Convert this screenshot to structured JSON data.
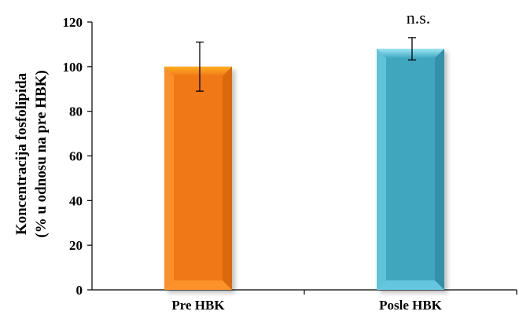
{
  "chart_data": {
    "type": "bar",
    "categories": [
      "Pre HBK",
      "Posle HBK"
    ],
    "values": [
      100,
      108
    ],
    "error_bars": [
      11,
      5
    ],
    "ylabel_line1": "Koncentracija  fosfolipida",
    "ylabel_line2": "(% u odnosu na pre HBK)",
    "ylim": [
      0,
      120
    ],
    "yticks": [
      "0",
      "20",
      "40",
      "60",
      "80",
      "100",
      "120"
    ],
    "annotation": "n.s.",
    "colors": [
      "#f07818",
      "#3fa6c0"
    ],
    "grid": false
  }
}
